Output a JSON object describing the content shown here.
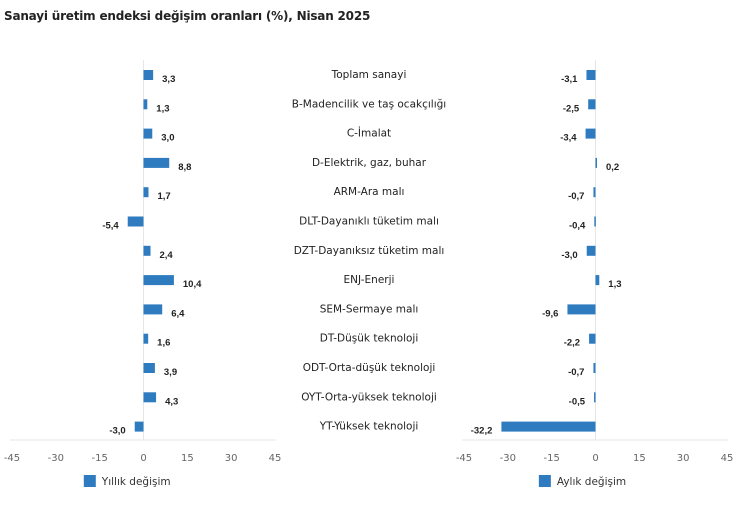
{
  "title": "Sanayi üretim endeksi değişim oranları (%), Nisan 2025",
  "chart_data": [
    {
      "type": "bar",
      "orientation": "horizontal",
      "title": "Sanayi üretim endeksi değişim oranları (%), Nisan 2025",
      "series_name": "Yıllık değişim",
      "categories": [
        "Toplam sanayi",
        "B-Madencilik ve taş ocakçılığı",
        "C-İmalat",
        "D-Elektrik, gaz, buhar",
        "ARM-Ara malı",
        "DLT-Dayanıklı tüketim malı",
        "DZT-Dayanıksız tüketim malı",
        "ENJ-Enerji",
        "SEM-Sermaye malı",
        "DT-Düşük teknoloji",
        "ODT-Orta-düşük teknoloji",
        "OYT-Orta-yüksek teknoloji",
        "YT-Yüksek teknoloji"
      ],
      "values": [
        3.3,
        1.3,
        3.0,
        8.8,
        1.7,
        -5.4,
        2.4,
        10.4,
        6.4,
        1.6,
        3.9,
        4.3,
        -3.0
      ],
      "value_labels": [
        "3,3",
        "1,3",
        "3,0",
        "8,8",
        "1,7",
        "-5,4",
        "2,4",
        "10,4",
        "6,4",
        "1,6",
        "3,9",
        "4,3",
        "-3,0"
      ],
      "xlim": [
        -45,
        45
      ],
      "xticks": [
        -45,
        -30,
        -15,
        0,
        15,
        30,
        45
      ],
      "xtick_labels": [
        "-45",
        "-30",
        "-15",
        "0",
        "15",
        "30",
        "45"
      ],
      "legend": "bottom-center",
      "color": "#2e7bbf",
      "grid": false
    },
    {
      "type": "bar",
      "orientation": "horizontal",
      "series_name": "Aylık değişim",
      "categories": [
        "Toplam sanayi",
        "B-Madencilik ve taş ocakçılığı",
        "C-İmalat",
        "D-Elektrik, gaz, buhar",
        "ARM-Ara malı",
        "DLT-Dayanıklı tüketim malı",
        "DZT-Dayanıksız tüketim malı",
        "ENJ-Enerji",
        "SEM-Sermaye malı",
        "DT-Düşük teknoloji",
        "ODT-Orta-düşük teknoloji",
        "OYT-Orta-yüksek teknoloji",
        "YT-Yüksek teknoloji"
      ],
      "values": [
        -3.1,
        -2.5,
        -3.4,
        0.2,
        -0.7,
        -0.4,
        -3.0,
        1.3,
        -9.6,
        -2.2,
        -0.7,
        -0.5,
        -32.2
      ],
      "value_labels": [
        "-3,1",
        "-2,5",
        "-3,4",
        "0,2",
        "-0,7",
        "-0,4",
        "-3,0",
        "1,3",
        "-9,6",
        "-2,2",
        "-0,7",
        "-0,5",
        "-32,2"
      ],
      "xlim": [
        -45,
        45
      ],
      "xticks": [
        -45,
        -30,
        -15,
        0,
        15,
        30,
        45
      ],
      "xtick_labels": [
        "-45",
        "-30",
        "-15",
        "0",
        "15",
        "30",
        "45"
      ],
      "legend": "bottom-center",
      "color": "#2e7bbf",
      "grid": false
    }
  ],
  "colors": {
    "bar": "#2e7bbf",
    "axis": "#e6e6e6",
    "text": "#222222",
    "tick": "#666666"
  }
}
